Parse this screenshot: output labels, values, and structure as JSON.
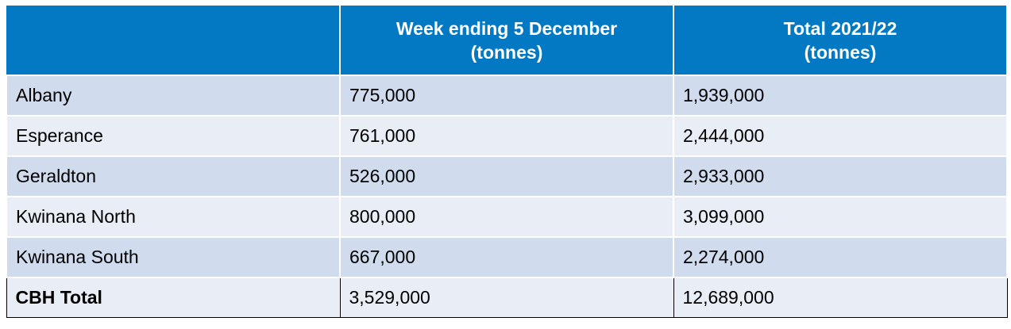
{
  "header": {
    "col1": "",
    "col2_line1": "Week ending 5 December",
    "col2_line2": "(tonnes)",
    "col3_line1": "Total 2021/22",
    "col3_line2": "(tonnes)"
  },
  "rows": [
    {
      "port": "Albany",
      "week": "775,000",
      "total": "1,939,000"
    },
    {
      "port": "Esperance",
      "week": "761,000",
      "total": "2,444,000"
    },
    {
      "port": "Geraldton",
      "week": "526,000",
      "total": "2,933,000"
    },
    {
      "port": "Kwinana North",
      "week": "800,000",
      "total": "3,099,000"
    },
    {
      "port": "Kwinana South",
      "week": "667,000",
      "total": "2,274,000"
    }
  ],
  "total_row": {
    "port": "CBH Total",
    "week": "3,529,000",
    "total": "12,689,000"
  },
  "colors": {
    "header": "#0279c2",
    "row_odd": "#d0dcee",
    "row_even": "#e9edf6"
  }
}
